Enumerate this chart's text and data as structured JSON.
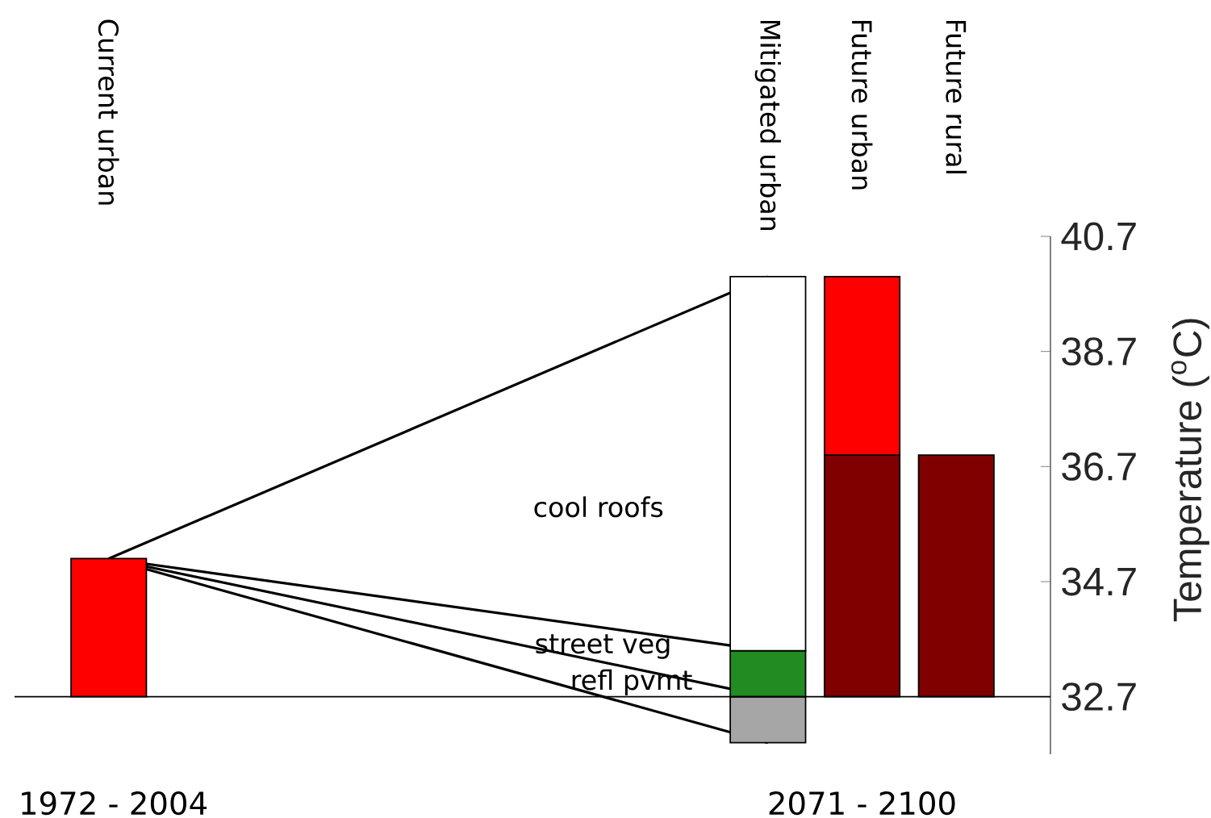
{
  "chart_data": {
    "type": "bar",
    "categories": [
      "Current urban",
      null,
      null,
      null,
      null,
      null,
      null,
      "Mitigated urban",
      "Future urban",
      "Future rural"
    ],
    "series": [
      {
        "type": "line",
        "color": "#000000",
        "x": [
          "Current urban",
          "Mitigated urban"
        ],
        "values": [
          35.1,
          40.0
        ]
      },
      {
        "type": "line",
        "color": "#000000",
        "x": [
          "Current urban",
          "Mitigated urban"
        ],
        "values": [
          35.1,
          33.5
        ]
      },
      {
        "type": "line",
        "color": "#000000",
        "x": [
          "Current urban",
          "Mitigated urban"
        ],
        "values": [
          35.1,
          32.7
        ]
      },
      {
        "type": "line",
        "color": "#000000",
        "x": [
          "Current urban",
          "Mitigated urban"
        ],
        "values": [
          35.1,
          31.9
        ]
      },
      {
        "color": "#a6a6a6",
        "base": [
          null,
          null,
          null,
          null,
          null,
          null,
          null,
          31.9,
          null,
          null
        ],
        "values": [
          null,
          null,
          null,
          null,
          null,
          null,
          null,
          0.8,
          null,
          null
        ]
      },
      {
        "color": "#228b22",
        "base": [
          null,
          null,
          null,
          null,
          null,
          null,
          null,
          32.7,
          null,
          null
        ],
        "values": [
          null,
          null,
          null,
          null,
          null,
          null,
          null,
          0.8,
          null,
          null
        ]
      },
      {
        "color": "#ffffff",
        "base": [
          null,
          null,
          null,
          null,
          null,
          null,
          null,
          33.5,
          null,
          null
        ],
        "values": [
          null,
          null,
          null,
          null,
          null,
          null,
          null,
          6.5,
          null,
          null
        ]
      },
      {
        "color": "#800000",
        "base": [
          null,
          null,
          null,
          null,
          null,
          null,
          null,
          null,
          32.7,
          32.7
        ],
        "values": [
          null,
          null,
          null,
          null,
          null,
          null,
          null,
          null,
          4.2,
          4.2
        ]
      },
      {
        "color": "#ff0000",
        "base": [
          32.7,
          null,
          null,
          null,
          null,
          null,
          null,
          null,
          36.9,
          null
        ],
        "values": [
          2.4,
          null,
          null,
          null,
          null,
          null,
          null,
          null,
          3.1,
          null
        ]
      }
    ],
    "ylim": [
      31.7,
      40.7
    ],
    "yticks": [
      32.7,
      34.7,
      36.7,
      38.7,
      40.7
    ],
    "ylabel": "Temperature ($^{o}$C)",
    "ref_lines": [
      {
        "axis": "y",
        "value": 32.7,
        "color": "#000000"
      }
    ],
    "annotations": [
      "cool roofs",
      "street veg",
      "refl pvmt",
      "1972 - 2004",
      "2071 - 2100"
    ]
  }
}
